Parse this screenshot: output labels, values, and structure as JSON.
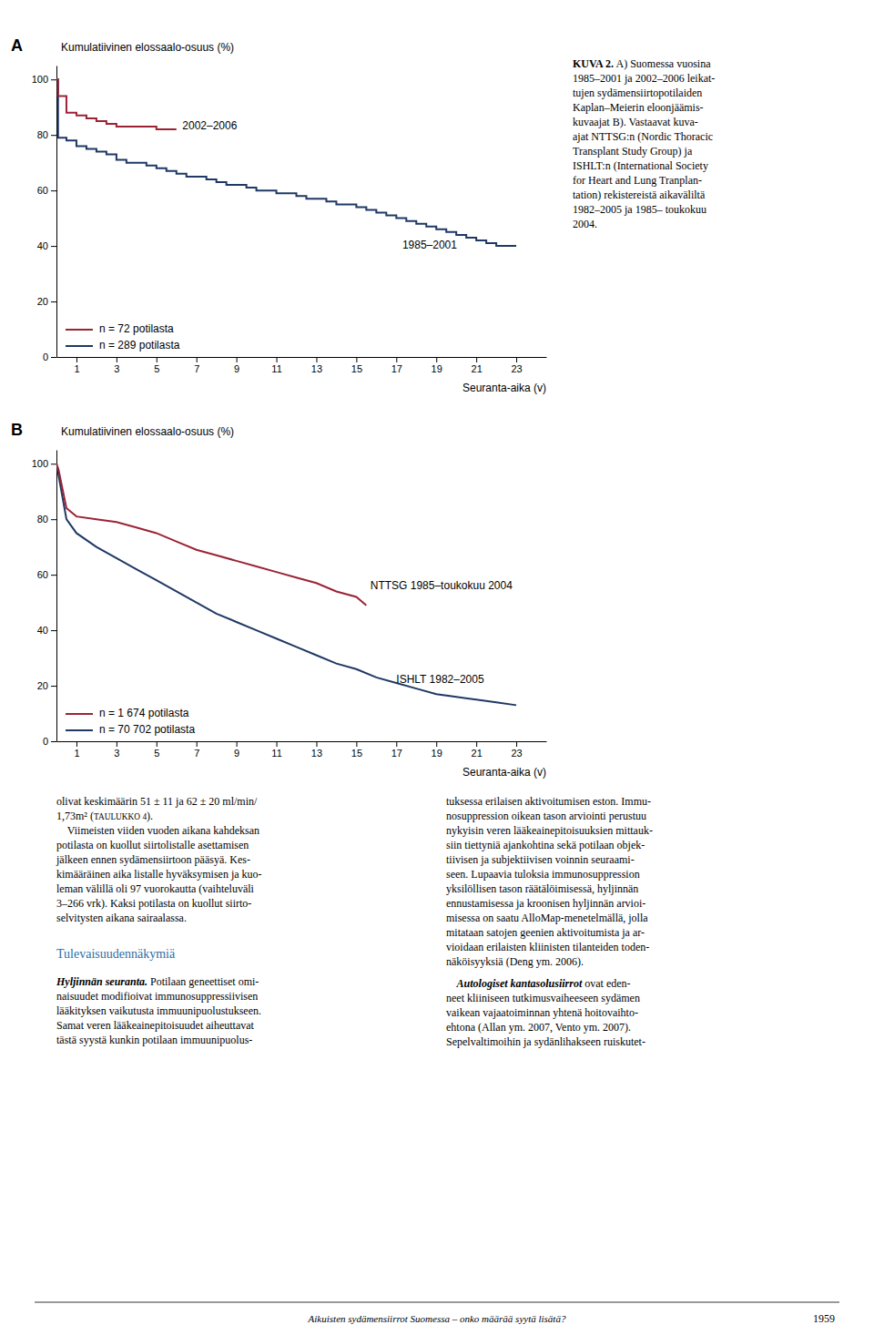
{
  "chart_data": [
    {
      "type": "step",
      "title": "A",
      "ylabel": "Kumulatiivinen elossaalo-osuus (%)",
      "xlabel": "Seuranta-aika (v)",
      "xlim": [
        0,
        24.5
      ],
      "ylim": [
        0,
        105
      ],
      "xticks": [
        1,
        3,
        5,
        7,
        9,
        11,
        13,
        15,
        17,
        19,
        21,
        23
      ],
      "yticks": [
        0,
        20,
        40,
        60,
        80,
        100
      ],
      "grid": false,
      "legend": "lower left",
      "series": [
        {
          "name": "n = 72 potilasta",
          "color": "#9b2335",
          "x": [
            0,
            0.08,
            0.5,
            1.0,
            1.5,
            2.0,
            2.5,
            3.0,
            3.5,
            4.0,
            4.5,
            5.0,
            5.5,
            6.0
          ],
          "values": [
            100,
            94,
            88,
            87,
            86,
            85,
            84,
            83,
            83,
            83,
            83,
            82,
            82,
            82
          ]
        },
        {
          "name": "n = 289 potilasta",
          "color": "#1f3864",
          "x": [
            0,
            0.08,
            0.5,
            1.0,
            1.5,
            2.0,
            2.5,
            3.0,
            3.5,
            4.0,
            4.5,
            5.0,
            5.5,
            6.0,
            6.5,
            7.0,
            7.5,
            8.0,
            8.5,
            9.0,
            9.5,
            10.0,
            10.5,
            11.0,
            11.5,
            12.0,
            12.5,
            13.0,
            13.5,
            14.0,
            14.5,
            15.0,
            15.5,
            16.0,
            16.5,
            17.0,
            17.5,
            18.0,
            18.5,
            19.0,
            19.5,
            20.0,
            20.5,
            21.0,
            21.5,
            22.0,
            22.5,
            23.0
          ],
          "values": [
            100,
            79,
            78,
            76,
            75,
            74,
            73,
            71,
            70,
            70,
            69,
            68,
            67,
            66,
            65,
            65,
            64,
            63,
            62,
            62,
            61,
            60,
            60,
            59,
            59,
            58,
            57,
            57,
            56,
            55,
            55,
            54,
            53,
            52,
            51,
            50,
            49,
            48,
            47,
            46,
            45,
            44,
            43,
            42,
            41,
            40,
            40,
            40
          ]
        }
      ],
      "annotations": [
        {
          "text": "2002–2006",
          "x": 6.3,
          "y": 83
        },
        {
          "text": "1985–2001",
          "x": 17.3,
          "y": 40
        }
      ]
    },
    {
      "type": "line",
      "title": "B",
      "ylabel": "Kumulatiivinen elossaalo-osuus (%)",
      "xlabel": "Seuranta-aika (v)",
      "xlim": [
        0,
        24.5
      ],
      "ylim": [
        0,
        105
      ],
      "xticks": [
        1,
        3,
        5,
        7,
        9,
        11,
        13,
        15,
        17,
        19,
        21,
        23
      ],
      "yticks": [
        0,
        20,
        40,
        60,
        80,
        100
      ],
      "grid": false,
      "legend": "lower left",
      "series": [
        {
          "name": "n = 1 674 potilasta",
          "color": "#9b2335",
          "x": [
            0,
            0.1,
            0.5,
            1.0,
            2.0,
            3.0,
            4.0,
            5.0,
            6.0,
            7.0,
            8.0,
            9.0,
            10.0,
            11.0,
            12.0,
            13.0,
            14.0,
            15.0,
            15.5
          ],
          "values": [
            100,
            98,
            84,
            81,
            80,
            79,
            77,
            75,
            72,
            69,
            67,
            65,
            63,
            61,
            59,
            57,
            54,
            52,
            49
          ]
        },
        {
          "name": "n = 70 702 potilasta",
          "color": "#1f3864",
          "x": [
            0,
            0.1,
            0.5,
            1.0,
            2.0,
            3.0,
            4.0,
            5.0,
            6.0,
            7.0,
            8.0,
            9.0,
            10.0,
            11.0,
            12.0,
            13.0,
            14.0,
            15.0,
            16.0,
            17.0,
            18.0,
            19.0,
            20.0,
            21.0,
            22.0,
            23.0
          ],
          "values": [
            100,
            96,
            80,
            75,
            70,
            66,
            62,
            58,
            54,
            50,
            46,
            43,
            40,
            37,
            34,
            31,
            28,
            26,
            23,
            21,
            19,
            17,
            16,
            15,
            14,
            13
          ]
        }
      ],
      "annotations": [
        {
          "text": "NTTSG 1985–toukokuu 2004",
          "x": 15.7,
          "y": 56
        },
        {
          "text": "ISHLT 1982–2005",
          "x": 17.0,
          "y": 22
        }
      ]
    }
  ],
  "page_text": {
    "caption_bold": "KUVA 2.",
    "caption": " A) Suomessa vuosina\n1985–2001 ja 2002–2006 leikat-\ntujen sydämensiirtopotilaiden\nKaplan–Meierin eloonjäämis-\nkuvaajat B). Vastaavat kuva-\najat NTTSG:n (Nordic Thoracic\nTransplant Study Group) ja\nISHLT:n (International Society\nfor Heart and Lung Tranplan-\ntation) rekistereistä aikaväliltä\n1982–2005 ja 1985– toukokuu\n2004.",
    "body_left_line1": "olivat keskimäärin 51 ± 11 ja 62 ± 20 ml/min/",
    "body_left_line2": "1,73m² (",
    "body_left_small_caps": "TAULUKKO 4",
    "body_left_line2_end": ").",
    "body_left_para": "    Viimeisten viiden vuoden aikana kahdeksan\npotilasta on kuollut siirtolistalle asettamisen\njälkeen ennen sydämensiirtoon pääsyä. Kes-\nkimääräinen aika listalle hyväksymisen ja kuo-\nleman välillä oli 97 vuorokautta (vaihteluväli\n3–266 vrk). Kaksi potilasta on kuollut siirto-\nselvitysten aikana sairaalassa.",
    "section_title": "Tulevaisuudennäkymiä",
    "section_title_color": "#2e6da4",
    "hyljinnan_bold": "Hyljinnän seuranta.",
    "hyljinnan": " Potilaan geneettiset omi-\nnaisuudet modifioivat immunosuppressiivisen\nlääkityksen vaikutusta immuunipuolustukseen.\nSamat veren lääkeainepitoisuudet aiheuttavat\ntästä syystä kunkin potilaan immuunipuolus-",
    "right_col": "tuksessa erilaisen aktivoitumisen eston. Immu-\nnosuppression oikean tason arviointi perustuu\nnykyisin veren lääkeainepitoisuuksien mittauk-\nsiin tiettyniä ajankohtina sekä potilaan objek-\ntiivisen ja subjektiivisen voinnin seuraami-\nseen. Lupaavia tuloksia immunosuppression\nyksilöllisen tason räätälöimisessä, hyljinnän\nennustamisessa ja kroonisen hyljinnän arvioi-\nmisessa on saatu AlloMap-menetelmällä, jolla\nmitataan satojen geenien aktivoitumista ja ar-\nvioidaan erilaisten kliinisten tilanteiden toden-\nnäköisyyksiä (Deng ym. 2006).",
    "autologiset_bold": "    Autologiset kantasolusiirrot",
    "autologiset": " ovat eden-\nneet kliiniseen tutkimusvaiheeseen sydämen\nvaikean vajaatoiminnan yhtenä hoitovaihto-\nehtona (Allan ym. 2007, Vento ym. 2007).\nSepelvaltimoihin ja sydänlihakseen ruiskutet-",
    "footer": "Aikuisten sydämensiirrot Suomessa – onko määrää syytä lisätä?",
    "page_number": "1959"
  }
}
